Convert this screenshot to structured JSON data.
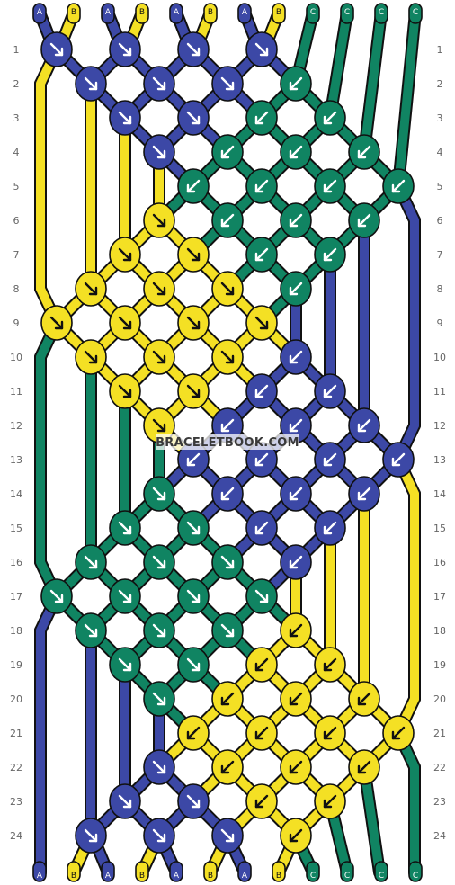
{
  "colors": {
    "A": "#3c48a6",
    "B": "#f4e024",
    "C": "#108462"
  },
  "top_labels": [
    "A",
    "B",
    "A",
    "B",
    "A",
    "B",
    "A",
    "B",
    "C",
    "C",
    "C",
    "C"
  ],
  "bottom_labels": [
    "A",
    "B",
    "A",
    "B",
    "A",
    "B",
    "A",
    "B",
    "C",
    "C",
    "C",
    "C"
  ],
  "row_numbers": [
    "1",
    "2",
    "3",
    "4",
    "5",
    "6",
    "7",
    "8",
    "9",
    "10",
    "11",
    "12",
    "13",
    "14",
    "15",
    "16",
    "17",
    "18",
    "19",
    "20",
    "21",
    "22",
    "23",
    "24"
  ],
  "watermark": "BRACELETBOOK.COM",
  "knots": [
    {
      "row": 1,
      "col": 1,
      "color": "A",
      "dir": "SE"
    },
    {
      "row": 1,
      "col": 3,
      "color": "A",
      "dir": "SE"
    },
    {
      "row": 1,
      "col": 5,
      "color": "A",
      "dir": "SE"
    },
    {
      "row": 1,
      "col": 7,
      "color": "A",
      "dir": "SE"
    },
    {
      "row": 2,
      "col": 2,
      "color": "A",
      "dir": "SE"
    },
    {
      "row": 2,
      "col": 4,
      "color": "A",
      "dir": "SE"
    },
    {
      "row": 2,
      "col": 6,
      "color": "A",
      "dir": "SE"
    },
    {
      "row": 2,
      "col": 8,
      "color": "C",
      "dir": "SW"
    },
    {
      "row": 3,
      "col": 3,
      "color": "A",
      "dir": "SE"
    },
    {
      "row": 3,
      "col": 5,
      "color": "A",
      "dir": "SE"
    },
    {
      "row": 3,
      "col": 7,
      "color": "C",
      "dir": "SW"
    },
    {
      "row": 3,
      "col": 9,
      "color": "C",
      "dir": "SW"
    },
    {
      "row": 4,
      "col": 4,
      "color": "A",
      "dir": "SE"
    },
    {
      "row": 4,
      "col": 6,
      "color": "C",
      "dir": "SW"
    },
    {
      "row": 4,
      "col": 8,
      "color": "C",
      "dir": "SW"
    },
    {
      "row": 4,
      "col": 10,
      "color": "C",
      "dir": "SW"
    },
    {
      "row": 5,
      "col": 5,
      "color": "C",
      "dir": "SW"
    },
    {
      "row": 5,
      "col": 7,
      "color": "C",
      "dir": "SW"
    },
    {
      "row": 5,
      "col": 9,
      "color": "C",
      "dir": "SW"
    },
    {
      "row": 5,
      "col": 11,
      "color": "C",
      "dir": "SW"
    },
    {
      "row": 6,
      "col": 4,
      "color": "B",
      "dir": "SE"
    },
    {
      "row": 6,
      "col": 6,
      "color": "C",
      "dir": "SW"
    },
    {
      "row": 6,
      "col": 8,
      "color": "C",
      "dir": "SW"
    },
    {
      "row": 6,
      "col": 10,
      "color": "C",
      "dir": "SW"
    },
    {
      "row": 7,
      "col": 3,
      "color": "B",
      "dir": "SE"
    },
    {
      "row": 7,
      "col": 5,
      "color": "B",
      "dir": "SE"
    },
    {
      "row": 7,
      "col": 7,
      "color": "C",
      "dir": "SW"
    },
    {
      "row": 7,
      "col": 9,
      "color": "C",
      "dir": "SW"
    },
    {
      "row": 8,
      "col": 2,
      "color": "B",
      "dir": "SE"
    },
    {
      "row": 8,
      "col": 4,
      "color": "B",
      "dir": "SE"
    },
    {
      "row": 8,
      "col": 6,
      "color": "B",
      "dir": "SE"
    },
    {
      "row": 8,
      "col": 8,
      "color": "C",
      "dir": "SW"
    },
    {
      "row": 9,
      "col": 1,
      "color": "B",
      "dir": "SE"
    },
    {
      "row": 9,
      "col": 3,
      "color": "B",
      "dir": "SE"
    },
    {
      "row": 9,
      "col": 5,
      "color": "B",
      "dir": "SE"
    },
    {
      "row": 9,
      "col": 7,
      "color": "B",
      "dir": "SE"
    },
    {
      "row": 10,
      "col": 2,
      "color": "B",
      "dir": "SE"
    },
    {
      "row": 10,
      "col": 4,
      "color": "B",
      "dir": "SE"
    },
    {
      "row": 10,
      "col": 6,
      "color": "B",
      "dir": "SE"
    },
    {
      "row": 10,
      "col": 8,
      "color": "A",
      "dir": "SW"
    },
    {
      "row": 11,
      "col": 3,
      "color": "B",
      "dir": "SE"
    },
    {
      "row": 11,
      "col": 5,
      "color": "B",
      "dir": "SE"
    },
    {
      "row": 11,
      "col": 7,
      "color": "A",
      "dir": "SW"
    },
    {
      "row": 11,
      "col": 9,
      "color": "A",
      "dir": "SW"
    },
    {
      "row": 12,
      "col": 4,
      "color": "B",
      "dir": "SE"
    },
    {
      "row": 12,
      "col": 6,
      "color": "A",
      "dir": "SW"
    },
    {
      "row": 12,
      "col": 8,
      "color": "A",
      "dir": "SW"
    },
    {
      "row": 12,
      "col": 10,
      "color": "A",
      "dir": "SW"
    },
    {
      "row": 13,
      "col": 5,
      "color": "A",
      "dir": "SW"
    },
    {
      "row": 13,
      "col": 7,
      "color": "A",
      "dir": "SW"
    },
    {
      "row": 13,
      "col": 9,
      "color": "A",
      "dir": "SW"
    },
    {
      "row": 13,
      "col": 11,
      "color": "A",
      "dir": "SW"
    },
    {
      "row": 14,
      "col": 4,
      "color": "C",
      "dir": "SE"
    },
    {
      "row": 14,
      "col": 6,
      "color": "A",
      "dir": "SW"
    },
    {
      "row": 14,
      "col": 8,
      "color": "A",
      "dir": "SW"
    },
    {
      "row": 14,
      "col": 10,
      "color": "A",
      "dir": "SW"
    },
    {
      "row": 15,
      "col": 3,
      "color": "C",
      "dir": "SE"
    },
    {
      "row": 15,
      "col": 5,
      "color": "C",
      "dir": "SE"
    },
    {
      "row": 15,
      "col": 7,
      "color": "A",
      "dir": "SW"
    },
    {
      "row": 15,
      "col": 9,
      "color": "A",
      "dir": "SW"
    },
    {
      "row": 16,
      "col": 2,
      "color": "C",
      "dir": "SE"
    },
    {
      "row": 16,
      "col": 4,
      "color": "C",
      "dir": "SE"
    },
    {
      "row": 16,
      "col": 6,
      "color": "C",
      "dir": "SE"
    },
    {
      "row": 16,
      "col": 8,
      "color": "A",
      "dir": "SW"
    },
    {
      "row": 17,
      "col": 1,
      "color": "C",
      "dir": "SE"
    },
    {
      "row": 17,
      "col": 3,
      "color": "C",
      "dir": "SE"
    },
    {
      "row": 17,
      "col": 5,
      "color": "C",
      "dir": "SE"
    },
    {
      "row": 17,
      "col": 7,
      "color": "C",
      "dir": "SE"
    },
    {
      "row": 18,
      "col": 2,
      "color": "C",
      "dir": "SE"
    },
    {
      "row": 18,
      "col": 4,
      "color": "C",
      "dir": "SE"
    },
    {
      "row": 18,
      "col": 6,
      "color": "C",
      "dir": "SE"
    },
    {
      "row": 18,
      "col": 8,
      "color": "B",
      "dir": "SW"
    },
    {
      "row": 19,
      "col": 3,
      "color": "C",
      "dir": "SE"
    },
    {
      "row": 19,
      "col": 5,
      "color": "C",
      "dir": "SE"
    },
    {
      "row": 19,
      "col": 7,
      "color": "B",
      "dir": "SW"
    },
    {
      "row": 19,
      "col": 9,
      "color": "B",
      "dir": "SW"
    },
    {
      "row": 20,
      "col": 4,
      "color": "C",
      "dir": "SE"
    },
    {
      "row": 20,
      "col": 6,
      "color": "B",
      "dir": "SW"
    },
    {
      "row": 20,
      "col": 8,
      "color": "B",
      "dir": "SW"
    },
    {
      "row": 20,
      "col": 10,
      "color": "B",
      "dir": "SW"
    },
    {
      "row": 21,
      "col": 5,
      "color": "B",
      "dir": "SW"
    },
    {
      "row": 21,
      "col": 7,
      "color": "B",
      "dir": "SW"
    },
    {
      "row": 21,
      "col": 9,
      "color": "B",
      "dir": "SW"
    },
    {
      "row": 21,
      "col": 11,
      "color": "B",
      "dir": "SW"
    },
    {
      "row": 22,
      "col": 4,
      "color": "A",
      "dir": "SE"
    },
    {
      "row": 22,
      "col": 6,
      "color": "B",
      "dir": "SW"
    },
    {
      "row": 22,
      "col": 8,
      "color": "B",
      "dir": "SW"
    },
    {
      "row": 22,
      "col": 10,
      "color": "B",
      "dir": "SW"
    },
    {
      "row": 23,
      "col": 3,
      "color": "A",
      "dir": "SE"
    },
    {
      "row": 23,
      "col": 5,
      "color": "A",
      "dir": "SE"
    },
    {
      "row": 23,
      "col": 7,
      "color": "B",
      "dir": "SW"
    },
    {
      "row": 23,
      "col": 9,
      "color": "B",
      "dir": "SW"
    },
    {
      "row": 24,
      "col": 2,
      "color": "A",
      "dir": "SE"
    },
    {
      "row": 24,
      "col": 4,
      "color": "A",
      "dir": "SE"
    },
    {
      "row": 24,
      "col": 6,
      "color": "A",
      "dir": "SE"
    },
    {
      "row": 24,
      "col": 8,
      "color": "B",
      "dir": "SW"
    }
  ]
}
